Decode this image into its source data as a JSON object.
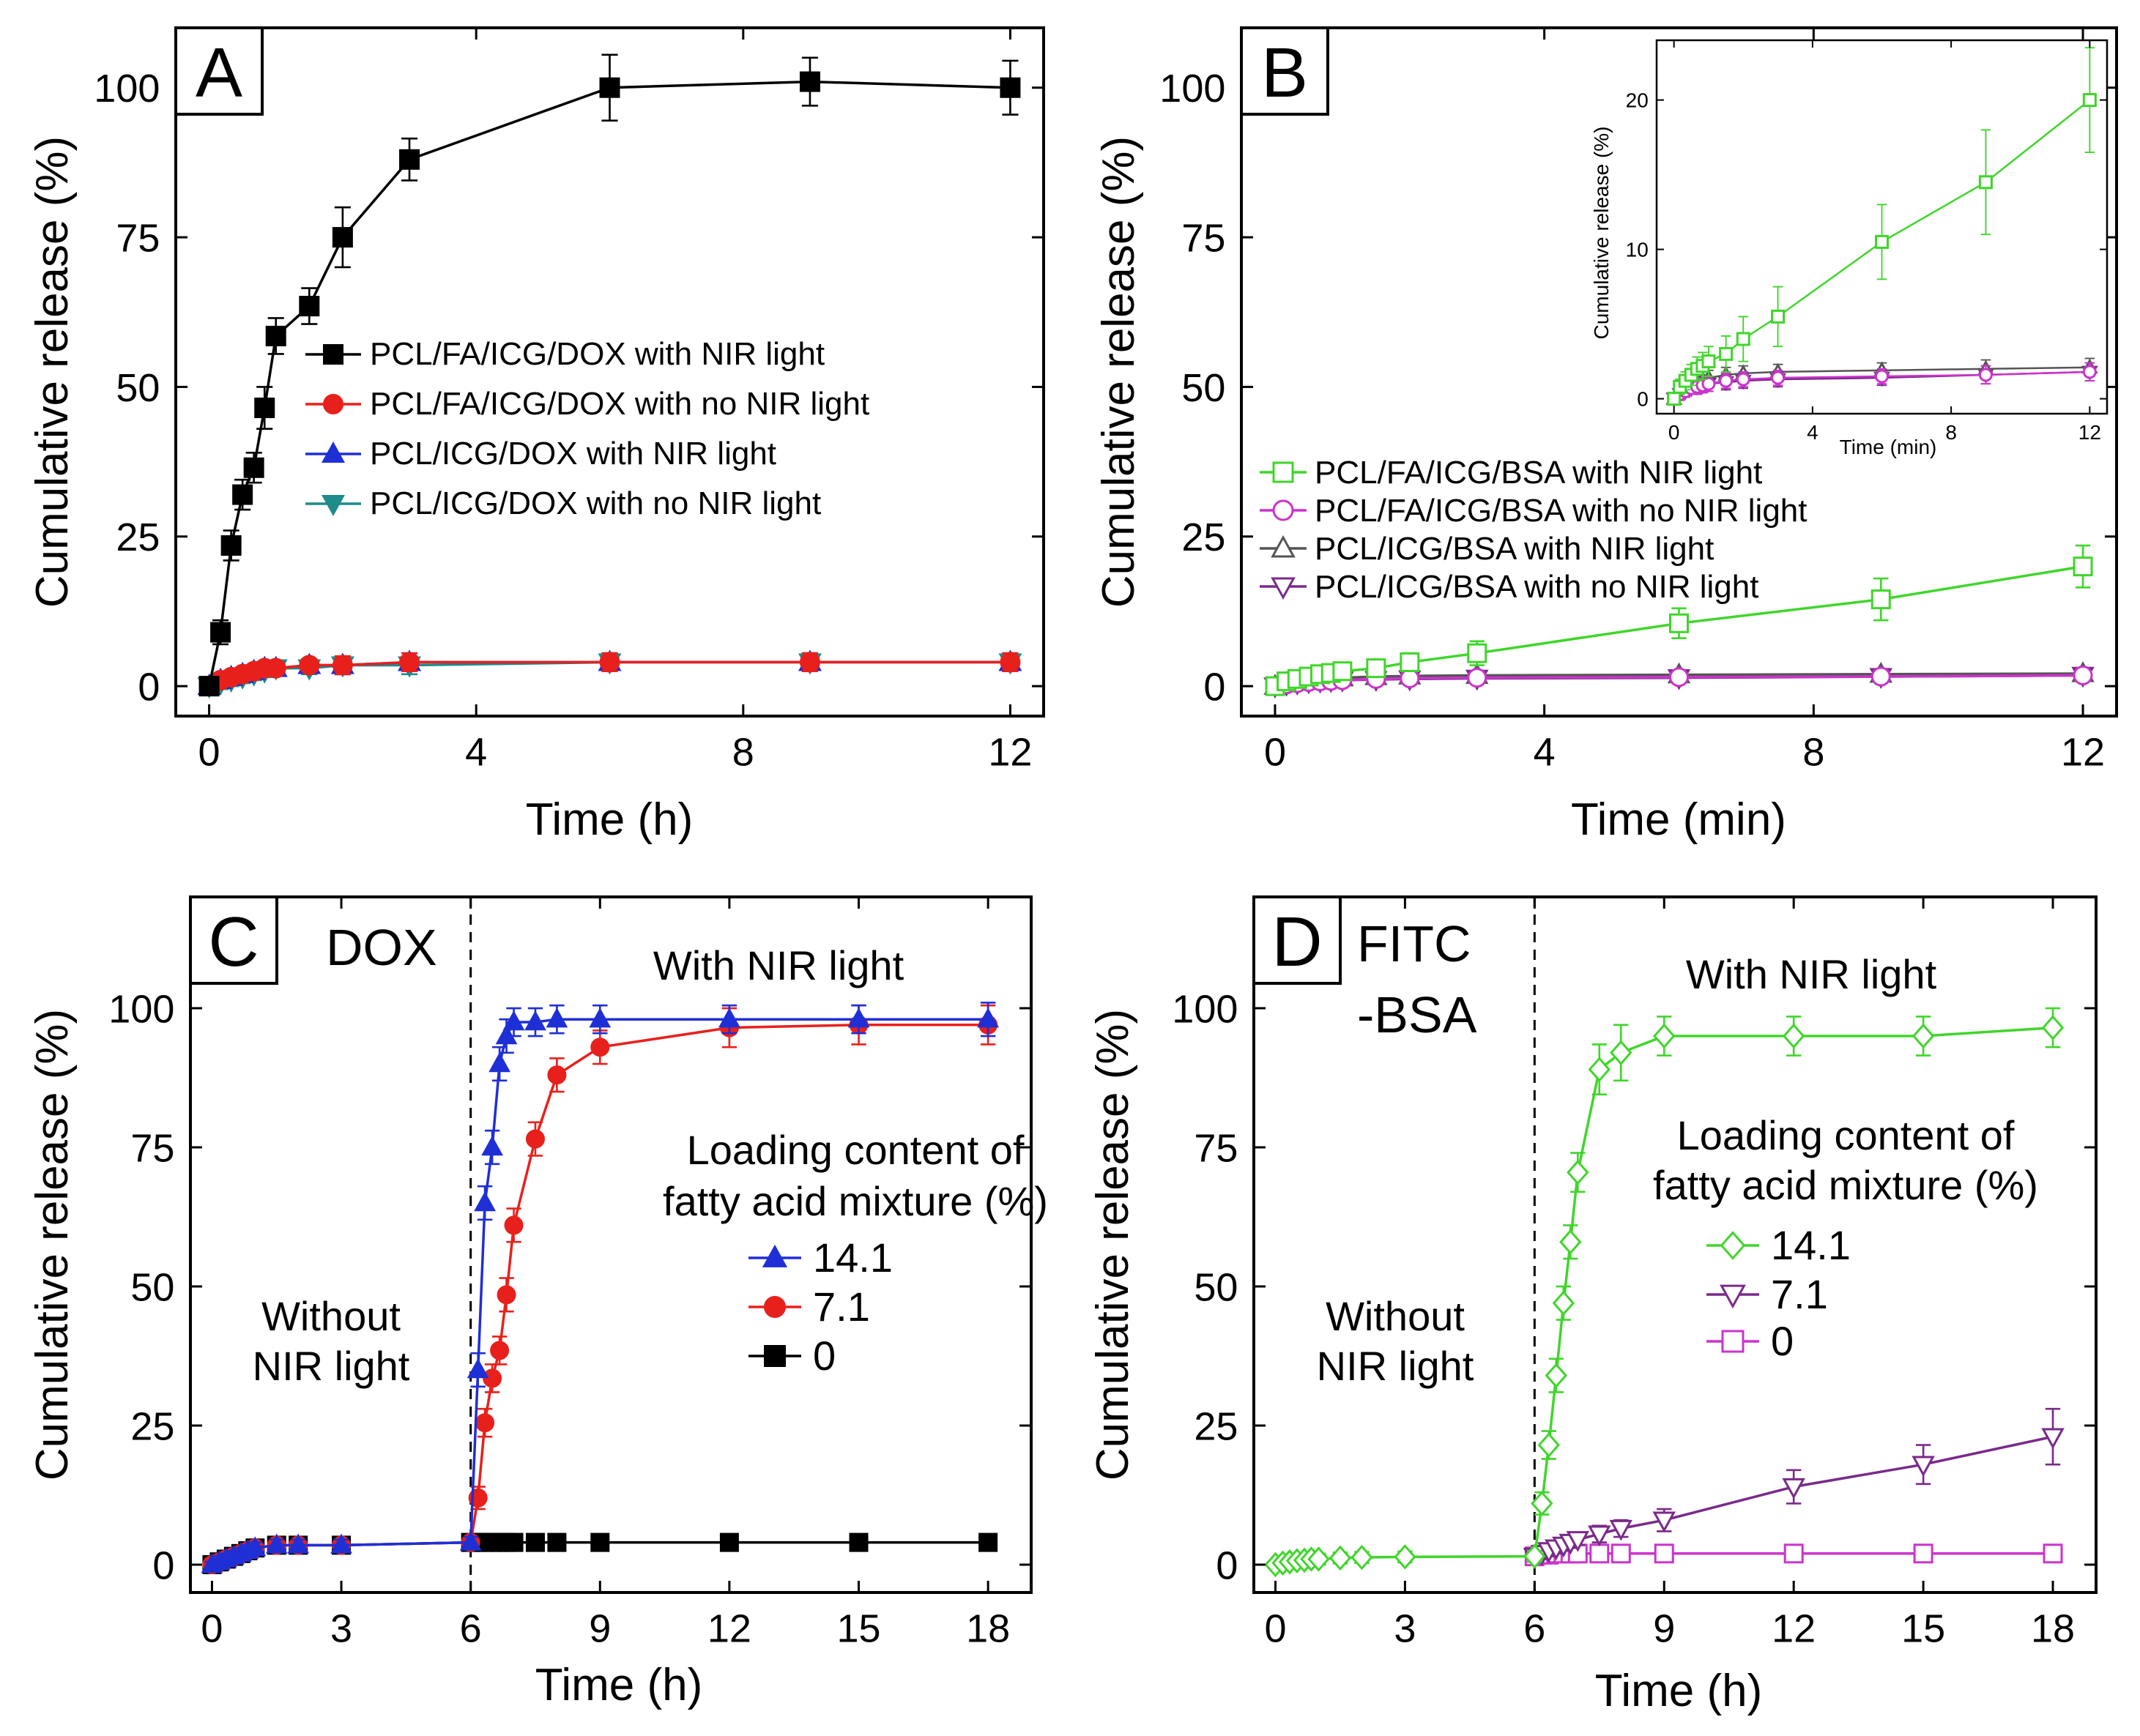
{
  "colors": {
    "black": "#000000",
    "red": "#e8201c",
    "blue": "#1f2fd6",
    "teal": "#1f8b8b",
    "green": "#3fd62a",
    "magenta": "#cc33cc",
    "gray": "#555555",
    "purple": "#7a2a8a"
  },
  "chart_data": [
    {
      "type": "line",
      "panel": "A",
      "xlabel": "Time (h)",
      "ylabel": "Cumulative release (%)",
      "xlim": [
        -0.5,
        12.5
      ],
      "ylim": [
        -5,
        110
      ],
      "xticks": [
        0,
        4,
        8,
        12
      ],
      "xtick_labels": [
        "0",
        "4",
        "8",
        "12"
      ],
      "yticks": [
        0,
        25,
        50,
        75,
        100
      ],
      "ytick_labels": [
        "0",
        "25",
        "50",
        "75",
        "100"
      ],
      "legend_position": "center",
      "series": [
        {
          "name": "PCL/FA/ICG/DOX with NIR light",
          "color": "black",
          "marker": "square",
          "filled": true,
          "x": [
            0,
            0.17,
            0.33,
            0.5,
            0.67,
            0.83,
            1,
            1.5,
            2,
            3,
            6,
            9,
            12
          ],
          "y": [
            0,
            9,
            23.5,
            32,
            36.5,
            46.5,
            58.5,
            63.5,
            75,
            88,
            100,
            101,
            100
          ],
          "err": [
            0.5,
            2,
            2.5,
            2.5,
            2.5,
            3.5,
            3,
            3,
            5,
            3.5,
            5.5,
            4,
            4.5
          ]
        },
        {
          "name": "PCL/FA/ICG/DOX with no NIR light",
          "color": "red",
          "marker": "circle",
          "filled": true,
          "x": [
            0,
            0.17,
            0.33,
            0.5,
            0.67,
            0.83,
            1,
            1.5,
            2,
            3,
            6,
            9,
            12
          ],
          "y": [
            0,
            1,
            1.5,
            2,
            2.5,
            3,
            3,
            3.5,
            3.5,
            4,
            4,
            4,
            4
          ],
          "err": [
            0.5,
            1,
            1,
            1,
            1,
            1,
            1,
            1,
            1.5,
            1.5,
            1.5,
            1.5,
            1.5
          ]
        },
        {
          "name": "PCL/ICG/DOX with NIR light",
          "color": "blue",
          "marker": "triangle-up",
          "filled": true,
          "x": [
            0,
            0.17,
            0.33,
            0.5,
            0.67,
            0.83,
            1,
            1.5,
            2,
            3,
            6,
            9,
            12
          ],
          "y": [
            0,
            1,
            1.5,
            2,
            2.5,
            3,
            3,
            3.5,
            3.5,
            4,
            4,
            4,
            4
          ],
          "err": [
            0.5,
            1,
            1,
            1,
            1,
            1,
            1,
            1,
            1.5,
            1.5,
            1.5,
            1.5,
            1.5
          ]
        },
        {
          "name": "PCL/ICG/DOX with no NIR light",
          "color": "teal",
          "marker": "triangle-down",
          "filled": true,
          "x": [
            0,
            0.17,
            0.33,
            0.5,
            0.67,
            0.83,
            1,
            1.5,
            2,
            3,
            6,
            9,
            12
          ],
          "y": [
            0,
            0.5,
            1,
            1.5,
            2,
            2.5,
            3,
            3,
            3.5,
            3.5,
            4,
            4,
            4
          ],
          "err": [
            0.5,
            1,
            1,
            1,
            1,
            1,
            1,
            1,
            1.5,
            1.5,
            1.5,
            1.5,
            1.5
          ]
        }
      ]
    },
    {
      "type": "line",
      "panel": "B",
      "xlabel": "Time (min)",
      "ylabel": "Cumulative release (%)",
      "xlim": [
        -0.5,
        12.5
      ],
      "ylim": [
        -5,
        110
      ],
      "xticks": [
        0,
        4,
        8,
        12
      ],
      "xtick_labels": [
        "0",
        "4",
        "8",
        "12"
      ],
      "yticks": [
        0,
        25,
        50,
        75,
        100
      ],
      "ytick_labels": [
        "0",
        "25",
        "50",
        "75",
        "100"
      ],
      "legend_position": "center-left",
      "series": [
        {
          "name": "PCL/FA/ICG/BSA with NIR light",
          "color": "green",
          "marker": "square",
          "filled": false,
          "x": [
            0,
            0.17,
            0.33,
            0.5,
            0.67,
            0.83,
            1,
            1.5,
            2,
            3,
            6,
            9,
            12
          ],
          "y": [
            0,
            0.8,
            1.2,
            1.6,
            2,
            2.2,
            2.5,
            3,
            4,
            5.5,
            10.5,
            14.5,
            20
          ],
          "err": [
            0.3,
            0.5,
            0.6,
            0.7,
            0.8,
            0.9,
            1,
            1.2,
            1.5,
            2,
            2.5,
            3.5,
            3.5
          ]
        },
        {
          "name": "PCL/FA/ICG/BSA with no NIR light",
          "color": "magenta",
          "marker": "circle",
          "filled": false,
          "x": [
            0,
            0.17,
            0.33,
            0.5,
            0.67,
            0.83,
            1,
            1.5,
            2,
            3,
            6,
            9,
            12
          ],
          "y": [
            0,
            0.3,
            0.5,
            0.7,
            0.8,
            0.9,
            1,
            1.2,
            1.3,
            1.4,
            1.5,
            1.6,
            1.8
          ],
          "err": [
            0.3,
            0.4,
            0.4,
            0.4,
            0.5,
            0.5,
            0.5,
            0.5,
            0.5,
            0.5,
            0.5,
            0.6,
            0.6
          ]
        },
        {
          "name": "PCL/ICG/BSA with NIR light",
          "color": "gray",
          "marker": "triangle-up",
          "filled": false,
          "x": [
            0,
            0.17,
            0.33,
            0.5,
            0.67,
            0.83,
            1,
            1.5,
            2,
            3,
            6,
            9,
            12
          ],
          "y": [
            0,
            0.5,
            0.8,
            1,
            1.2,
            1.3,
            1.4,
            1.6,
            1.7,
            1.8,
            1.9,
            2,
            2.1
          ],
          "err": [
            0.3,
            0.4,
            0.4,
            0.4,
            0.5,
            0.5,
            0.5,
            0.5,
            0.5,
            0.5,
            0.5,
            0.6,
            0.6
          ]
        },
        {
          "name": "PCL/ICG/BSA with no NIR light",
          "color": "purple",
          "marker": "triangle-down",
          "filled": false,
          "x": [
            0,
            0.17,
            0.33,
            0.5,
            0.67,
            0.83,
            1,
            1.5,
            2,
            3,
            6,
            9,
            12
          ],
          "y": [
            0,
            0.3,
            0.5,
            0.7,
            0.8,
            0.9,
            1,
            1.1,
            1.2,
            1.3,
            1.4,
            1.6,
            1.8
          ],
          "err": [
            0.3,
            0.4,
            0.4,
            0.4,
            0.5,
            0.5,
            0.5,
            0.5,
            0.5,
            0.5,
            0.5,
            0.6,
            0.6
          ]
        }
      ],
      "inset": {
        "xlabel": "Time (min)",
        "ylabel": "Cumulative release (%)",
        "xlim": [
          -0.5,
          12.5
        ],
        "ylim": [
          -1,
          24
        ],
        "xticks": [
          0,
          4,
          8,
          12
        ],
        "xtick_labels": [
          "0",
          "4",
          "8",
          "12"
        ],
        "yticks": [
          0,
          10,
          20
        ],
        "ytick_labels": [
          "0",
          "10",
          "20"
        ]
      }
    },
    {
      "type": "line",
      "panel": "C",
      "xlabel": "Time (h)",
      "ylabel": "Cumulative release (%)",
      "xlim": [
        -0.5,
        19
      ],
      "ylim": [
        -5,
        120
      ],
      "xticks": [
        0,
        3,
        6,
        9,
        12,
        15,
        18
      ],
      "xtick_labels": [
        "0",
        "3",
        "6",
        "9",
        "12",
        "15",
        "18"
      ],
      "yticks": [
        0,
        25,
        50,
        75,
        100
      ],
      "ytick_labels": [
        "0",
        "25",
        "50",
        "75",
        "100"
      ],
      "divider_x": 6,
      "legend_position": "center-right",
      "series": [
        {
          "name": "14.1",
          "color": "blue",
          "marker": "triangle-up",
          "filled": true,
          "x": [
            0,
            0.17,
            0.33,
            0.5,
            0.67,
            0.83,
            1,
            1.5,
            2,
            3,
            6,
            6.17,
            6.33,
            6.5,
            6.67,
            6.83,
            7,
            7.5,
            8,
            9,
            12,
            15,
            18
          ],
          "y": [
            0,
            0.5,
            1,
            1.5,
            2,
            2.5,
            3,
            3.5,
            3.5,
            3.5,
            4,
            35,
            65,
            75,
            90,
            95,
            97.5,
            97.5,
            98,
            98,
            98,
            98,
            98
          ],
          "err": [
            0.5,
            1,
            1,
            1,
            1,
            1,
            1,
            1,
            1,
            1,
            1,
            3,
            3,
            3,
            3,
            3,
            2.5,
            2.5,
            2.5,
            2.5,
            2.5,
            2.5,
            3
          ]
        },
        {
          "name": "7.1",
          "color": "red",
          "marker": "circle",
          "filled": true,
          "x": [
            0,
            0.17,
            0.33,
            0.5,
            0.67,
            0.83,
            1,
            1.5,
            2,
            3,
            6,
            6.17,
            6.33,
            6.5,
            6.67,
            6.83,
            7,
            7.5,
            8,
            9,
            12,
            15,
            18
          ],
          "y": [
            0,
            0.5,
            1,
            1.5,
            2,
            2.5,
            3,
            3.5,
            3.5,
            3.5,
            4,
            12,
            25.5,
            33.5,
            38.5,
            48.5,
            61,
            76.5,
            88,
            93,
            96.5,
            97,
            97
          ],
          "err": [
            0.5,
            1,
            1,
            1,
            1,
            1,
            1,
            1,
            1,
            1,
            1,
            2,
            2.5,
            2.5,
            2.5,
            3,
            3,
            3,
            3,
            3,
            3.5,
            3.5,
            3.5
          ]
        },
        {
          "name": "0",
          "color": "black",
          "marker": "square",
          "filled": true,
          "x": [
            0,
            0.17,
            0.33,
            0.5,
            0.67,
            0.83,
            1,
            1.5,
            2,
            3,
            6,
            6.17,
            6.33,
            6.5,
            6.67,
            6.83,
            7,
            7.5,
            8,
            9,
            12,
            15,
            18
          ],
          "y": [
            0,
            0.5,
            1,
            1.5,
            2,
            2.5,
            3,
            3.5,
            3.5,
            3.5,
            4,
            4,
            4,
            4,
            4,
            4,
            4,
            4,
            4,
            4,
            4,
            4,
            4
          ],
          "err": [
            0.5,
            1,
            1,
            1,
            1,
            1,
            1,
            1,
            1,
            1,
            1,
            1,
            1,
            1,
            1,
            1,
            1,
            1,
            1,
            1,
            1,
            1,
            1
          ]
        }
      ]
    },
    {
      "type": "line",
      "panel": "D",
      "xlabel": "Time (h)",
      "ylabel": "Cumulative release (%)",
      "xlim": [
        -0.5,
        19
      ],
      "ylim": [
        -5,
        120
      ],
      "xticks": [
        0,
        3,
        6,
        9,
        12,
        15,
        18
      ],
      "xtick_labels": [
        "0",
        "3",
        "6",
        "9",
        "12",
        "15",
        "18"
      ],
      "yticks": [
        0,
        25,
        50,
        75,
        100
      ],
      "ytick_labels": [
        "0",
        "25",
        "50",
        "75",
        "100"
      ],
      "divider_x": 6,
      "legend_position": "center-right",
      "series": [
        {
          "name": "14.1",
          "color": "green",
          "marker": "diamond",
          "filled": false,
          "x": [
            0,
            0.17,
            0.33,
            0.5,
            0.67,
            0.83,
            1,
            1.5,
            2,
            3,
            6,
            6.17,
            6.33,
            6.5,
            6.67,
            6.83,
            7,
            7.5,
            8,
            9,
            12,
            15,
            18
          ],
          "y": [
            0,
            0.3,
            0.5,
            0.7,
            0.8,
            1,
            1,
            1.2,
            1.3,
            1.4,
            1.5,
            11,
            21.5,
            34,
            47,
            58,
            70.5,
            89,
            92,
            95,
            95,
            95,
            96.5
          ],
          "err": [
            0.5,
            1,
            1,
            1,
            1,
            1,
            1,
            1,
            1,
            1,
            1,
            2,
            2.5,
            3,
            3,
            3,
            3.5,
            4.5,
            5,
            3.5,
            3.5,
            3.5,
            3.5
          ]
        },
        {
          "name": "7.1",
          "color": "purple",
          "marker": "triangle-down",
          "filled": false,
          "x": [
            6,
            6.17,
            6.33,
            6.5,
            6.67,
            6.83,
            7,
            7.5,
            8,
            9,
            12,
            15,
            18
          ],
          "y": [
            1.5,
            2,
            2.5,
            3,
            3.5,
            4,
            4.5,
            5.5,
            6.5,
            8,
            14,
            18,
            23
          ],
          "err": [
            1,
            1,
            1,
            1,
            1,
            1,
            1,
            1.5,
            1.5,
            2,
            3,
            3.5,
            5
          ]
        },
        {
          "name": "0",
          "color": "magenta",
          "marker": "square",
          "filled": false,
          "x": [
            6,
            6.17,
            6.33,
            6.5,
            6.67,
            6.83,
            7,
            7.5,
            8,
            9,
            12,
            15,
            18
          ],
          "y": [
            1.5,
            1.8,
            1.8,
            2,
            2,
            2,
            2,
            2,
            2,
            2,
            2,
            2,
            2
          ],
          "err": [
            0.8,
            0.8,
            0.8,
            0.8,
            0.8,
            0.8,
            0.8,
            0.8,
            0.8,
            0.8,
            0.8,
            0.8,
            0.8
          ]
        }
      ]
    }
  ],
  "panels": {
    "A": {
      "letter": "A"
    },
    "B": {
      "letter": "B"
    },
    "C": {
      "letter": "C",
      "tag": "DOX",
      "left_note_1": "Without",
      "left_note_2": "NIR light",
      "right_note": "With NIR light",
      "legend_title_1": "Loading content of",
      "legend_title_2": "fatty acid mixture (%)"
    },
    "D": {
      "letter": "D",
      "tag_1": "FITC",
      "tag_2": "-BSA",
      "left_note_1": "Without",
      "left_note_2": "NIR light",
      "right_note": "With NIR light",
      "legend_title_1": "Loading content of",
      "legend_title_2": "fatty acid mixture (%)"
    }
  }
}
